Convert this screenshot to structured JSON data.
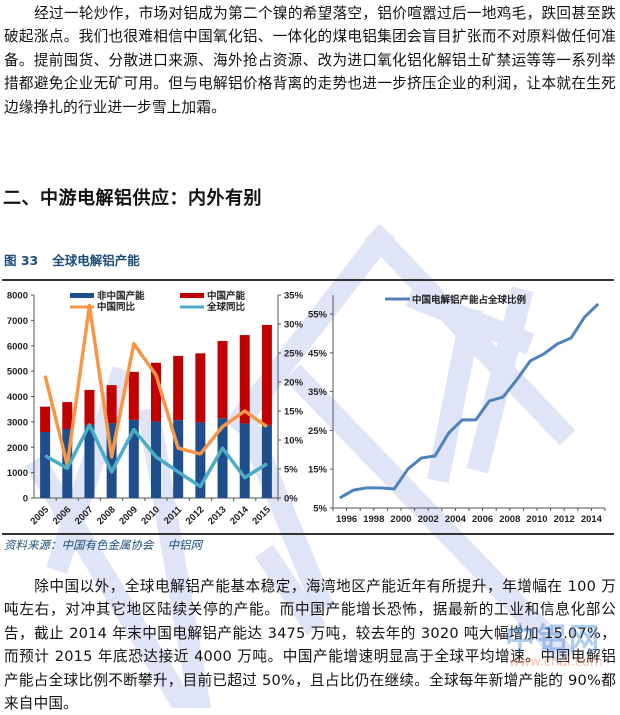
{
  "paragraph1": "经过一轮炒作，市场对铝成为第二个镍的希望落空，铝价喧嚣过后一地鸡毛，跌回甚至跌破起涨点。我们也很难相信中国氧化铝、一体化的煤电铝集团会盲目扩张而不对原料做任何准备。提前囤货、分散进口来源、海外抢占资源、改为进口氧化铝化解铝土矿禁运等等一系列举措都避免企业无矿可用。但与电解铝价格背离的走势也进一步挤压企业的利润，让本就在生死边缘挣扎的行业进一步雪上加霜。",
  "section_heading": "二、中游电解铝供应：内外有别",
  "figure": {
    "number": "图 33",
    "title": "全球电解铝产能",
    "source_label": "资料来源：中国有色金属协会",
    "source_extra": "中铝网"
  },
  "paragraph2": "除中国以外，全球电解铝产能基本稳定，海湾地区产能近年有所提升，年增幅在 100 万吨左右，对冲其它地区陆续关停的产能。而中国产能增长恐怖，据最新的工业和信息化部公告，截止 2014 年末中国电解铝产能达 3475 万吨，较去年的 3020 吨大幅增加 15.07%，而预计 2015 年底恐达接近 4000 万吨。中国产能增速明显高于全球平均增速。中国电解铝产能占全球比例不断攀升，目前已超过 50%，且占比仍在继续。全球每年新增产能的 90%都来自中国。",
  "watermark_logo": {
    "text": "中铝网",
    "url": "www.cnal.com"
  },
  "colors": {
    "non_china_bar": "#1f4e8c",
    "china_bar": "#c00000",
    "china_yoy": "#f79646",
    "global_yoy": "#4bacc6",
    "share_line": "#4f81bd",
    "figure_title": "#1f4e79"
  },
  "chart_data": [
    {
      "type": "bar",
      "subtype": "stacked bar + line (dual axis)",
      "title": "全球电解铝产能",
      "categories": [
        "2005",
        "2006",
        "2007",
        "2008",
        "2009",
        "2010",
        "2011",
        "2012",
        "2013",
        "2014",
        "2015"
      ],
      "series": [
        {
          "name": "非中国产能",
          "kind": "bar",
          "axis": "left",
          "values": [
            2600,
            2720,
            2880,
            2950,
            3080,
            3010,
            3070,
            2980,
            3140,
            2940,
            2880
          ]
        },
        {
          "name": "中国产能",
          "kind": "bar",
          "axis": "left",
          "values": [
            1000,
            1060,
            1380,
            1500,
            1890,
            2320,
            2530,
            2720,
            3050,
            3480,
            3940
          ]
        },
        {
          "name": "中国同比",
          "kind": "line",
          "axis": "right",
          "values": [
            21.1,
            5.7,
            33.2,
            7.1,
            26.6,
            21.2,
            8.6,
            7.6,
            12.3,
            15.0,
            12.3
          ]
        },
        {
          "name": "全球同比",
          "kind": "line",
          "axis": "right",
          "values": [
            7.3,
            5.1,
            12.6,
            4.5,
            11.8,
            7.1,
            4.5,
            2.0,
            8.6,
            3.5,
            5.9
          ]
        }
      ],
      "left_axis": {
        "ylim": [
          0,
          8000
        ],
        "ticks": [
          "0",
          "1000",
          "2000",
          "3000",
          "4000",
          "5000",
          "6000",
          "7000",
          "8000"
        ]
      },
      "right_axis": {
        "ylim": [
          0,
          35
        ],
        "ticks": [
          "0%",
          "5%",
          "10%",
          "15%",
          "20%",
          "25%",
          "30%",
          "35%"
        ]
      },
      "legend": [
        "非中国产能",
        "中国产能",
        "中国同比",
        "全球同比"
      ],
      "legend_position": "top"
    },
    {
      "type": "line",
      "title": "中国电解铝产能占全球比例",
      "x": [
        "1996",
        "1997",
        "1998",
        "1999",
        "2000",
        "2001",
        "2002",
        "2003",
        "2004",
        "2005",
        "2006",
        "2007",
        "2008",
        "2009",
        "2010",
        "2011",
        "2012",
        "2013",
        "2014",
        "2015"
      ],
      "series": [
        {
          "name": "中国电解铝产能占全球比例",
          "values": [
            7.6,
            9.6,
            10.2,
            10.2,
            9.9,
            15.0,
            17.9,
            18.4,
            24.3,
            27.7,
            27.7,
            32.6,
            33.6,
            38.0,
            42.9,
            44.7,
            47.3,
            48.8,
            54.2,
            57.6
          ]
        }
      ],
      "x_ticks": [
        "1996",
        "1998",
        "2000",
        "2002",
        "2004",
        "2006",
        "2008",
        "2010",
        "2012",
        "2014"
      ],
      "y_ticks": [
        "5%",
        "15%",
        "25%",
        "35%",
        "45%",
        "55%"
      ],
      "ylim": [
        5,
        60
      ],
      "legend_position": "top"
    }
  ]
}
